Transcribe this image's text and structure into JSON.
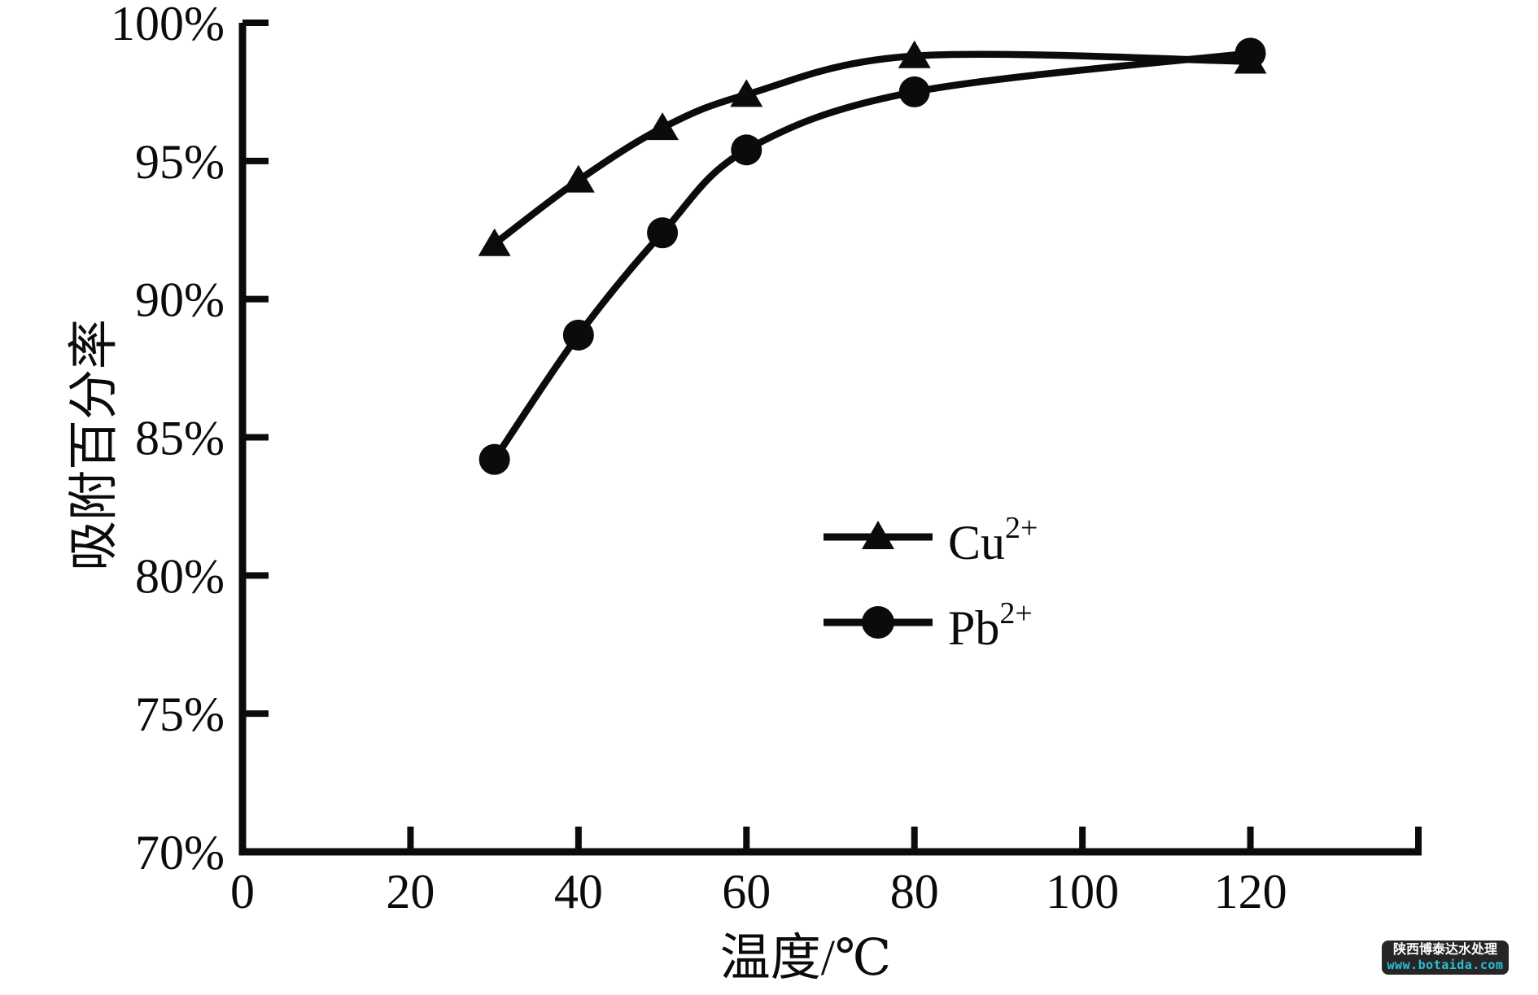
{
  "chart_data": {
    "type": "line",
    "title": "",
    "xlabel": "温度/℃",
    "ylabel": "吸附百分率",
    "xlim": [
      0,
      140
    ],
    "ylim": [
      70,
      100
    ],
    "grid": false,
    "legend_position": "center-right",
    "line_color": "#0b0b0b",
    "x": [
      30,
      40,
      50,
      60,
      80,
      120
    ],
    "series": [
      {
        "name": "Cu2+",
        "label_base": "Cu",
        "label_sup": "2+",
        "marker": "triangle",
        "values": [
          92.0,
          94.3,
          96.2,
          97.4,
          98.8,
          98.6
        ]
      },
      {
        "name": "Pb2+",
        "label_base": "Pb",
        "label_sup": "2+",
        "marker": "circle",
        "values": [
          84.2,
          88.7,
          92.4,
          95.4,
          97.5,
          98.9
        ]
      }
    ],
    "x_ticks": [
      {
        "value": 0,
        "label": "0",
        "tick": false
      },
      {
        "value": 20,
        "label": "20",
        "tick": true
      },
      {
        "value": 40,
        "label": "40",
        "tick": true
      },
      {
        "value": 60,
        "label": "60",
        "tick": true
      },
      {
        "value": 80,
        "label": "80",
        "tick": true
      },
      {
        "value": 100,
        "label": "100",
        "tick": true
      },
      {
        "value": 120,
        "label": "120",
        "tick": true
      },
      {
        "value": 140,
        "label": "",
        "tick": true
      }
    ],
    "y_ticks": [
      {
        "value": 70,
        "label": "70%",
        "tick": false
      },
      {
        "value": 75,
        "label": "75%",
        "tick": true
      },
      {
        "value": 80,
        "label": "80%",
        "tick": true
      },
      {
        "value": 85,
        "label": "85%",
        "tick": true
      },
      {
        "value": 90,
        "label": "90%",
        "tick": true
      },
      {
        "value": 95,
        "label": "95%",
        "tick": true
      },
      {
        "value": 100,
        "label": "100%",
        "tick": true
      }
    ]
  },
  "watermark": {
    "line1": "陕西博泰达水处理",
    "line2": "www.botaida.com",
    "bg_color": "#262626",
    "line1_color": "#ffffff",
    "line2_color": "#2bc0d4"
  }
}
